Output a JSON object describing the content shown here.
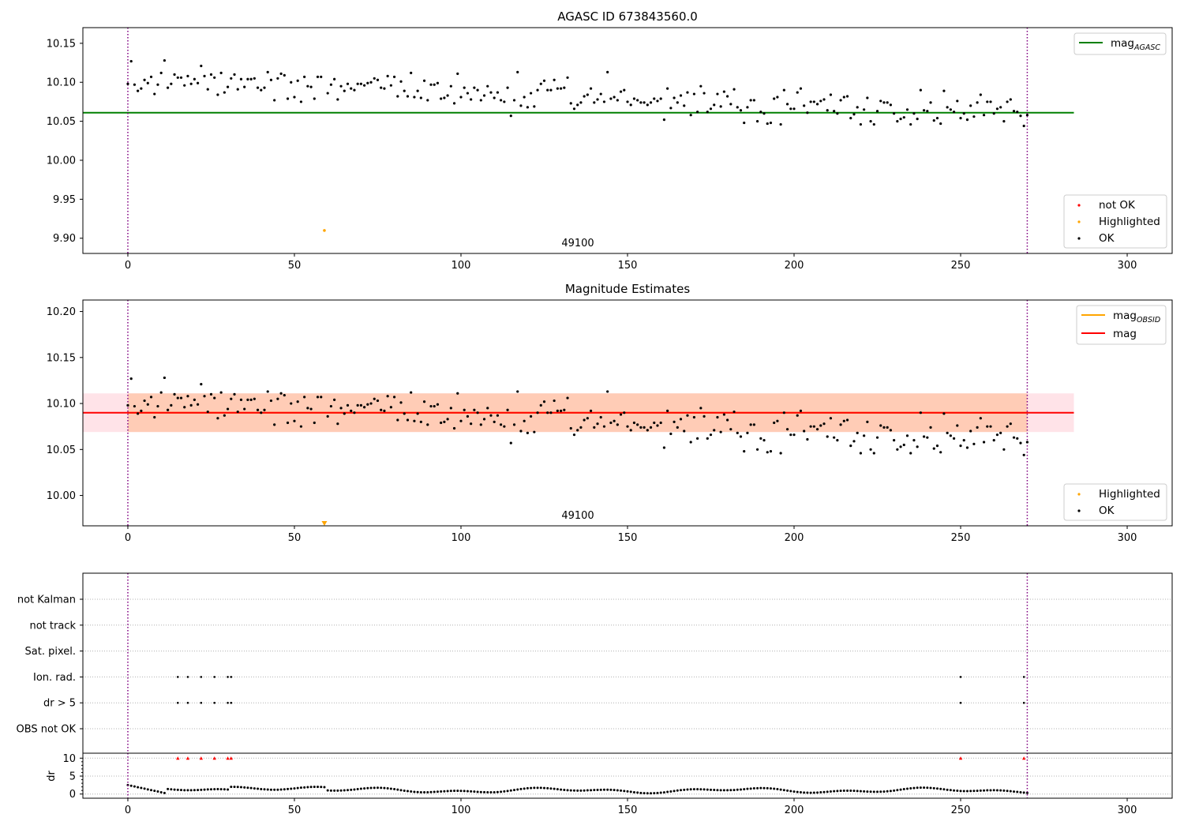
{
  "colors": {
    "ok": "#000000",
    "not_ok": "#ff0000",
    "highlighted": "#ffa500",
    "mag_agasc_line": "#008000",
    "mag_obsid_line": "#ffa500",
    "mag_line": "#ff0000",
    "band_outer": "#ffc0cb",
    "band_inner": "#ffb07a",
    "obs_boundary": "#800080",
    "grid": "#b0b0b0"
  },
  "chart_data": [
    {
      "type": "scatter",
      "title": "AGASC ID 673843560.0",
      "xlim": [
        -13.5,
        313.5
      ],
      "ylim": [
        9.8805,
        10.1701
      ],
      "xticks": [
        0,
        50,
        100,
        150,
        200,
        250,
        300
      ],
      "xtick_labels": [
        "0",
        "50",
        "100",
        "150",
        "200",
        "250",
        "300"
      ],
      "yticks": [
        9.9,
        9.95,
        10.0,
        10.05,
        10.1,
        10.15
      ],
      "ytick_labels": [
        "9.90",
        "9.95",
        "10.00",
        "10.05",
        "10.10",
        "10.15"
      ],
      "obs_boundaries": [
        0,
        270
      ],
      "obsid_label": "49100",
      "mag_agasc": {
        "value": 10.061,
        "x_range": [
          -13.5,
          284
        ]
      },
      "series": [
        {
          "name": "not OK",
          "points": []
        },
        {
          "name": "Highlighted",
          "points": [
            [
              59,
              9.91
            ]
          ]
        },
        {
          "name": "OK",
          "points": []
        }
      ],
      "legend_lines": [
        {
          "name": "mag",
          "sub": "AGASC"
        }
      ],
      "legend_markers": [
        "not OK",
        "Highlighted",
        "OK"
      ]
    },
    {
      "type": "scatter",
      "title": "Magnitude Estimates",
      "xlim": [
        -13.5,
        313.5
      ],
      "ylim": [
        9.967,
        10.2125
      ],
      "xticks": [
        0,
        50,
        100,
        150,
        200,
        250,
        300
      ],
      "xtick_labels": [
        "0",
        "50",
        "100",
        "150",
        "200",
        "250",
        "300"
      ],
      "yticks": [
        10.0,
        10.05,
        10.1,
        10.15,
        10.2
      ],
      "ytick_labels": [
        "10.00",
        "10.05",
        "10.10",
        "10.15",
        "10.20"
      ],
      "obs_boundaries": [
        0,
        270
      ],
      "obsid_label": "49100",
      "mag": {
        "value": 10.09,
        "x_range": [
          -13.5,
          284
        ]
      },
      "mag_obsid": {
        "value": 10.09,
        "x_range": [
          0,
          270
        ]
      },
      "band_outer": {
        "low": 10.069,
        "high": 10.111,
        "x_range": [
          -13.5,
          284
        ]
      },
      "band_inner": {
        "low": 10.069,
        "high": 10.111,
        "x_range": [
          0,
          270
        ]
      },
      "series": [
        {
          "name": "Highlighted",
          "points": [
            [
              59,
              9.967
            ]
          ],
          "marker": "down-triangle"
        },
        {
          "name": "OK",
          "points": []
        }
      ],
      "legend_lines": [
        {
          "name": "mag",
          "sub": "OBSID"
        },
        {
          "name": "mag",
          "sub": ""
        }
      ],
      "legend_markers": [
        "Highlighted",
        "OK"
      ]
    },
    {
      "type": "scatter",
      "title": "",
      "xlim": [
        -13.5,
        313.5
      ],
      "xticks": [
        0,
        50,
        100,
        150,
        200,
        250,
        300
      ],
      "xtick_labels": [
        "0",
        "50",
        "100",
        "150",
        "200",
        "250",
        "300"
      ],
      "obs_boundaries": [
        0,
        270
      ],
      "flag_rows": [
        "not Kalman",
        "not track",
        "Sat. pixel.",
        "Ion. rad.",
        "dr > 5",
        "OBS not OK"
      ],
      "flags": {
        "Ion. rad.": [
          15,
          18,
          22,
          26,
          30,
          31,
          250,
          269
        ],
        "dr > 5": [
          15,
          18,
          22,
          26,
          30,
          31,
          250,
          269
        ]
      },
      "dr_ylabel": "dr",
      "dr_ylim": [
        -0.5,
        10.5
      ],
      "dr_yticks": [
        0,
        5,
        10
      ],
      "dr_ytick_labels": [
        "0",
        "5",
        "10"
      ],
      "dr_minor_ticks": [
        1,
        2,
        3,
        4,
        6,
        7,
        8,
        9
      ],
      "dr_clipped": {
        "value": 10,
        "x": [
          15,
          18,
          22,
          26,
          30,
          31,
          250,
          269
        ]
      },
      "dr_points": []
    }
  ]
}
